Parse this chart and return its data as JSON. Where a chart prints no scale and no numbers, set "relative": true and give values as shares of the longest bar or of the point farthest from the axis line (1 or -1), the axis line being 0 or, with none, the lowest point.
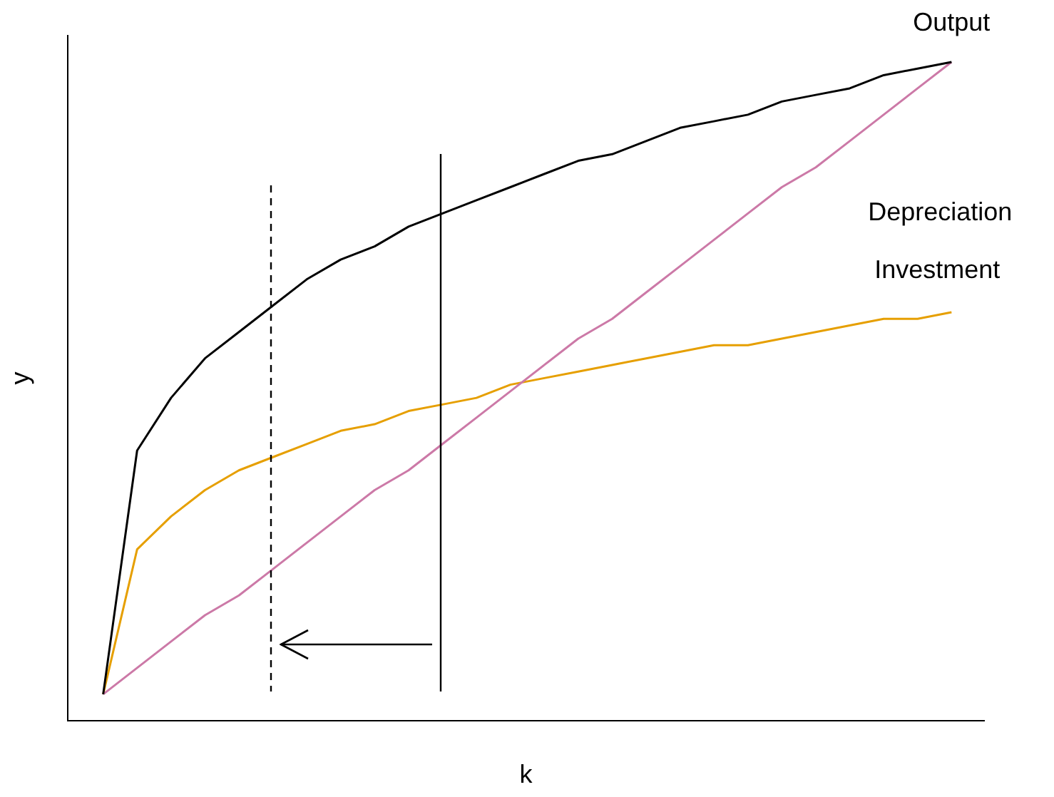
{
  "chart_data": {
    "type": "line",
    "xlabel": "k",
    "ylabel": "y",
    "relative": true,
    "grid": false,
    "legend": false,
    "marker": "none",
    "categories": [
      null,
      null,
      null,
      null,
      null,
      null,
      null,
      null,
      null,
      null,
      null,
      null,
      null,
      null,
      null,
      null,
      null,
      null,
      null,
      null,
      null,
      null,
      null,
      null,
      null,
      null
    ],
    "series": [
      {
        "name": "Output",
        "color": "#000000",
        "values": [
          0.04,
          0.41,
          0.49,
          0.55,
          0.59,
          0.63,
          0.67,
          0.7,
          0.72,
          0.75,
          0.77,
          0.79,
          0.81,
          0.83,
          0.85,
          0.86,
          0.88,
          0.9,
          0.91,
          0.92,
          0.94,
          0.95,
          0.96,
          0.98,
          0.99,
          1.0
        ]
      },
      {
        "name": "Depreciation",
        "color": "#cc79a7",
        "values": [
          0.04,
          0.08,
          0.12,
          0.16,
          0.19,
          0.23,
          0.27,
          0.31,
          0.35,
          0.38,
          0.42,
          0.46,
          0.5,
          0.54,
          0.58,
          0.61,
          0.65,
          0.69,
          0.73,
          0.77,
          0.81,
          0.84,
          0.88,
          0.92,
          0.96,
          1.0
        ]
      },
      {
        "name": "Investment",
        "color": "#e69f00",
        "values": [
          0.04,
          0.26,
          0.31,
          0.35,
          0.38,
          0.4,
          0.42,
          0.44,
          0.45,
          0.47,
          0.48,
          0.49,
          0.51,
          0.52,
          0.53,
          0.54,
          0.55,
          0.56,
          0.57,
          0.57,
          0.58,
          0.59,
          0.6,
          0.61,
          0.61,
          0.62
        ]
      }
    ]
  }
}
